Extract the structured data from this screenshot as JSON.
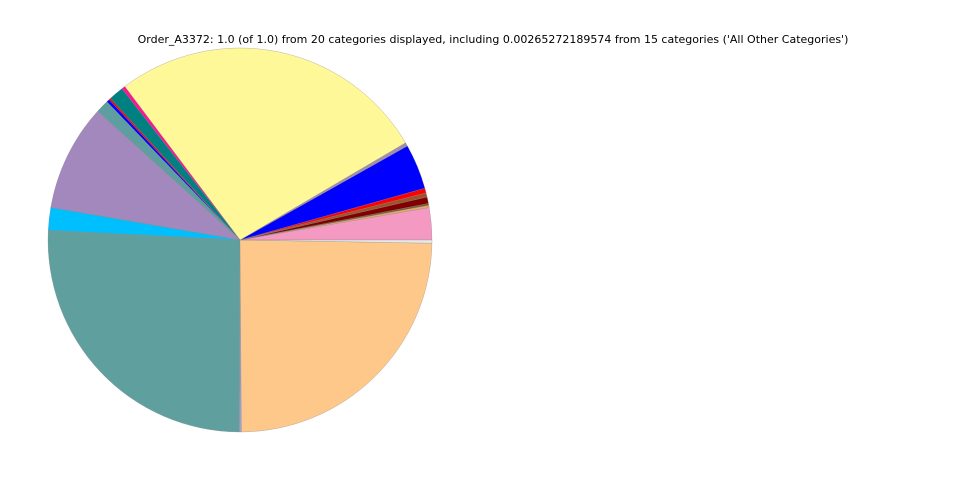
{
  "chart_data": {
    "type": "pie",
    "title": "Order_A3372: 1.0 (of 1.0) from 20 categories displayed, including 0.00265272189574 from 15 categories ('All Other Categories')",
    "start_angle_deg": 0,
    "direction": "counterclockwise",
    "slices": [
      {
        "value": 0.027,
        "color": "#f49ac2"
      },
      {
        "value": 0.002,
        "color": "#e9a56b"
      },
      {
        "value": 0.0015,
        "color": "#7b5a2a"
      },
      {
        "value": 0.0055,
        "color": "#800000"
      },
      {
        "value": 0.0035,
        "color": "#a0522d"
      },
      {
        "value": 0.004,
        "color": "#ff0000"
      },
      {
        "value": 0.038,
        "color": "#0000ff"
      },
      {
        "value": 0.003,
        "color": "#a08cb0"
      },
      {
        "value": 0.268,
        "color": "#fff899"
      },
      {
        "value": 0.003,
        "color": "#ff1493"
      },
      {
        "value": 0.0125,
        "color": "#008080"
      },
      {
        "value": 0.0015,
        "color": "#ff0000"
      },
      {
        "value": 0.0025,
        "color": "#0000ff"
      },
      {
        "value": 0.011,
        "color": "#5f9ea0"
      },
      {
        "value": 0.09,
        "color": "#a288bd"
      },
      {
        "value": 0.019,
        "color": "#00bfff"
      },
      {
        "value": 0.2575,
        "color": "#5fa09e"
      },
      {
        "value": 0.0017,
        "color": "#9aa0d8"
      },
      {
        "value": 0.2462,
        "color": "#fec88a"
      },
      {
        "value": 0.00265,
        "color": "#e8e8e8",
        "label": "All Other Categories"
      }
    ]
  }
}
